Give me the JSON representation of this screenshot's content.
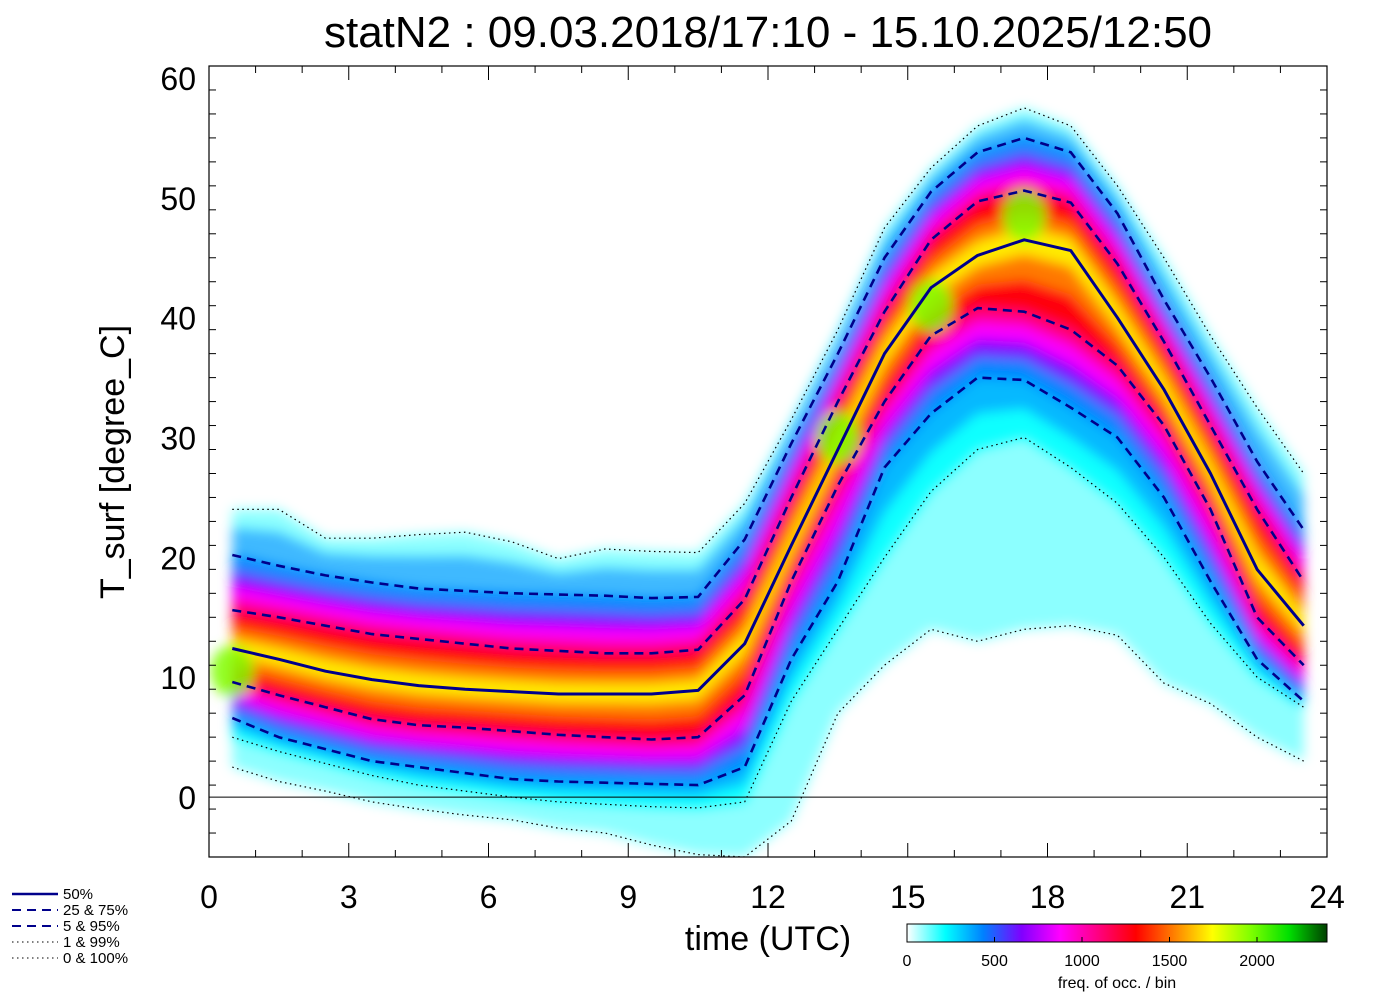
{
  "chart_data": {
    "type": "heatmap",
    "title": "statN2 : 09.03.2018/17:10 - 15.10.2025/12:50",
    "xlabel": "time (UTC)",
    "ylabel": "T_surf [degree_C]",
    "xlim": [
      0,
      24
    ],
    "ylim": [
      -5,
      61
    ],
    "x_ticks": [
      0,
      3,
      6,
      9,
      12,
      15,
      18,
      21,
      24
    ],
    "y_ticks": [
      0,
      10,
      20,
      30,
      40,
      50,
      60
    ],
    "x": [
      0.5,
      1.5,
      2.5,
      3.5,
      4.5,
      5.5,
      6.5,
      7.5,
      8.5,
      9.5,
      10.5,
      11.5,
      12.5,
      13.5,
      14.5,
      15.5,
      16.5,
      17.5,
      18.5,
      19.5,
      20.5,
      21.5,
      22.5,
      23.5
    ],
    "series": [
      {
        "name": "0 & 100% low",
        "style": "dotted",
        "values": [
          2.5,
          1.3,
          0.5,
          -0.4,
          -1.0,
          -1.5,
          -1.9,
          -2.6,
          -3.0,
          -4.0,
          -4.8,
          -5.0,
          -2.0,
          7.0,
          11.0,
          14.0,
          13.0,
          14.0,
          14.3,
          13.5,
          9.5,
          7.8,
          5.0,
          3.0
        ]
      },
      {
        "name": "1 & 99% low",
        "style": "dotted",
        "values": [
          5.0,
          3.8,
          2.8,
          1.8,
          1.0,
          0.5,
          0.0,
          -0.4,
          -0.6,
          -0.8,
          -0.9,
          -0.4,
          8.0,
          14.0,
          20.0,
          25.5,
          29.0,
          30.0,
          27.5,
          24.5,
          20.0,
          14.5,
          10.0,
          7.5
        ]
      },
      {
        "name": "5 & 95% low",
        "style": "dashed",
        "values": [
          6.6,
          5.0,
          4.0,
          3.0,
          2.5,
          2.0,
          1.5,
          1.3,
          1.2,
          1.1,
          1.0,
          2.5,
          11.5,
          18.0,
          27.5,
          32.0,
          35.0,
          34.8,
          32.5,
          30.0,
          25.0,
          18.0,
          11.5,
          8.0
        ]
      },
      {
        "name": "25 & 75% low",
        "style": "dashed",
        "values": [
          9.6,
          8.5,
          7.5,
          6.5,
          6.0,
          5.8,
          5.5,
          5.2,
          5.0,
          4.8,
          5.0,
          8.5,
          18.0,
          26.0,
          33.0,
          38.5,
          40.8,
          40.5,
          39.0,
          36.0,
          31.0,
          24.0,
          15.0,
          11.0
        ]
      },
      {
        "name": "50%",
        "style": "solid",
        "values": [
          12.4,
          11.5,
          10.5,
          9.8,
          9.3,
          9.0,
          8.8,
          8.6,
          8.6,
          8.6,
          8.9,
          12.8,
          21.0,
          29.0,
          37.0,
          42.5,
          45.2,
          46.5,
          45.6,
          40.0,
          34.0,
          27.0,
          19.0,
          14.3
        ]
      },
      {
        "name": "25 & 75% high",
        "style": "dashed",
        "values": [
          15.6,
          15.0,
          14.3,
          13.6,
          13.2,
          12.8,
          12.4,
          12.2,
          12.0,
          12.0,
          12.3,
          16.5,
          25.0,
          33.0,
          40.5,
          46.5,
          49.7,
          50.6,
          49.6,
          44.5,
          38.0,
          31.0,
          24.0,
          18.0
        ]
      },
      {
        "name": "5 & 95% high",
        "style": "dashed",
        "values": [
          20.2,
          19.3,
          18.5,
          17.9,
          17.4,
          17.2,
          17.0,
          16.9,
          16.8,
          16.6,
          16.7,
          21.5,
          29.5,
          37.0,
          45.0,
          50.5,
          53.8,
          55.0,
          53.8,
          48.7,
          41.5,
          35.0,
          28.0,
          22.3
        ]
      },
      {
        "name": "1 & 99% high",
        "style": "dotted",
        "values": [
          24.0,
          24.0,
          21.6,
          21.6,
          21.9,
          22.1,
          21.3,
          19.9,
          20.7,
          20.5,
          20.4,
          24.5,
          31.5,
          39.0,
          47.5,
          52.5,
          56.0,
          57.5,
          56.0,
          51.0,
          45.0,
          38.5,
          32.5,
          27.0
        ]
      }
    ],
    "reference_line": {
      "y": 0
    },
    "legend": [
      {
        "label": "50%",
        "style": "solid"
      },
      {
        "label": "25 &  75%",
        "style": "dashed"
      },
      {
        "label": "5 &  95%",
        "style": "dashed"
      },
      {
        "label": "1 &  99%",
        "style": "dotted"
      },
      {
        "label": "0 & 100%",
        "style": "dotted"
      }
    ],
    "legend_placement": "bottom-left",
    "colorbar": {
      "label": "freq. of occ. / bin",
      "range": [
        0,
        2400
      ],
      "ticks": [
        0,
        500,
        1000,
        1500,
        2000
      ],
      "colors": [
        "#ffffff",
        "#00ffff",
        "#0080ff",
        "#8000ff",
        "#ff00ff",
        "#ff0080",
        "#ff0000",
        "#ff8000",
        "#ffff00",
        "#80ff00",
        "#00e000",
        "#004000"
      ]
    }
  },
  "colors": {
    "median_line": "#00008b",
    "reference_line": "#000000"
  }
}
